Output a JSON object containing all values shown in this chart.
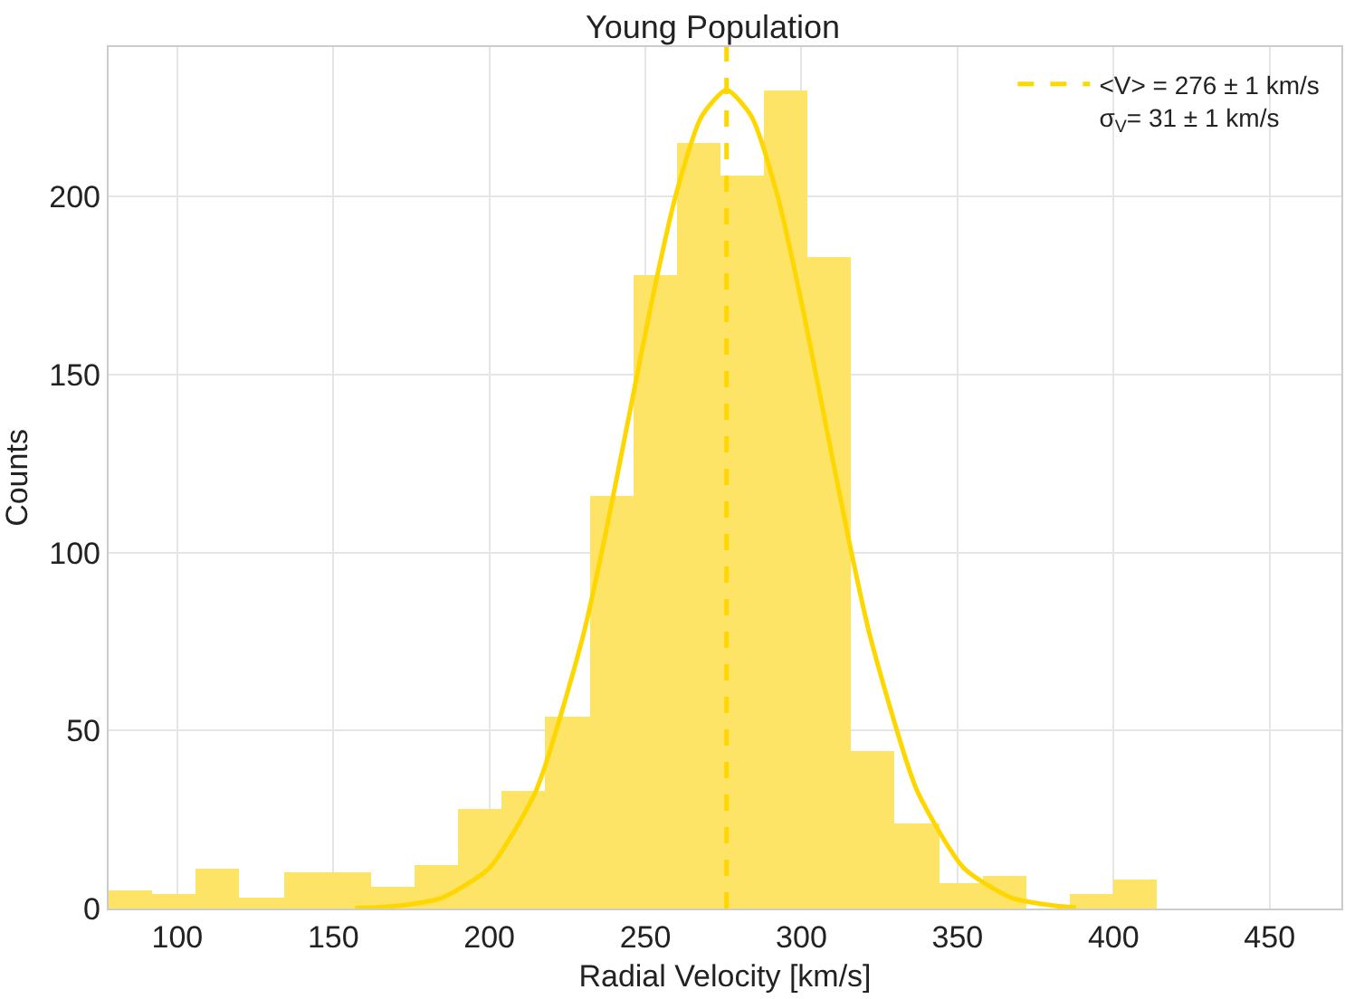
{
  "chart_data": {
    "type": "histogram",
    "title": "Young Population",
    "xlabel": "Radial Velocity [km/s]",
    "ylabel": "Counts",
    "bins": [
      78,
      92,
      106,
      120,
      134,
      148,
      162,
      176,
      190,
      204,
      218,
      232,
      246,
      260,
      274,
      288,
      302,
      316,
      330,
      344,
      358,
      372,
      386,
      400,
      414
    ],
    "values": [
      5,
      4,
      11,
      3,
      10,
      10,
      6,
      12,
      28,
      33,
      54,
      116,
      178,
      215,
      206,
      230,
      183,
      44,
      24,
      7,
      9,
      0,
      4,
      8
    ],
    "color": "#fde467",
    "series": [
      {
        "type": "line",
        "color": "#ffd700",
        "x": [
          157,
          170,
          185,
          200,
          215,
          230,
          237,
          245,
          252,
          260,
          268,
          276,
          284,
          292,
          300,
          307,
          315,
          322,
          337,
          352,
          367,
          382,
          388
        ],
        "values": [
          0.1,
          0.7,
          3.1,
          11.4,
          33.2,
          76.5,
          104.3,
          139.5,
          170.4,
          201.3,
          222.5,
          230,
          222.5,
          201.3,
          170.4,
          139.5,
          104.3,
          76.5,
          33.2,
          11.4,
          3.1,
          0.7,
          0.3
        ]
      },
      {
        "type": "line",
        "name": "<V> = 276 ± 1 km/s\nσ$_{V}$= 31 ± 1 km/s",
        "color": "#ffd700",
        "line_style": "dashed",
        "x": [
          276,
          276
        ],
        "values": [
          0,
          242
        ]
      }
    ],
    "xlim": [
      78,
      473
    ],
    "ylim": [
      0,
      242
    ],
    "xticks": [
      100,
      150,
      200,
      250,
      300,
      350,
      400,
      450
    ],
    "yticks": [
      0,
      50,
      100,
      150,
      200
    ],
    "grid": true,
    "legend": "top right"
  }
}
